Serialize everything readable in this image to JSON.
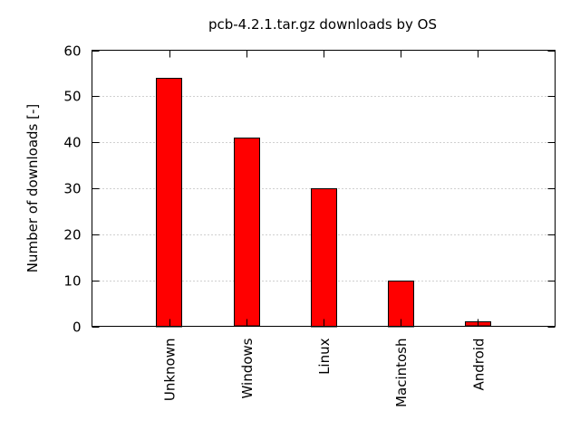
{
  "chart_data": {
    "type": "bar",
    "title": "pcb-4.2.1.tar.gz downloads by OS",
    "xlabel": "",
    "ylabel": "Number of downloads [-]",
    "categories": [
      "Unknown",
      "Windows",
      "Linux",
      "Macintosh",
      "Android"
    ],
    "values": [
      54,
      41,
      30,
      10,
      1
    ],
    "ylim": [
      0,
      60
    ],
    "yticks": [
      0,
      10,
      20,
      30,
      40,
      50,
      60
    ],
    "ytick_labels": [
      "0",
      "10",
      "20",
      "30",
      "40",
      "50",
      "60"
    ],
    "grid": "horizontal-dotted",
    "legend": "none",
    "bar_color": "#ff0000",
    "bar_edge_color": "#000000"
  }
}
